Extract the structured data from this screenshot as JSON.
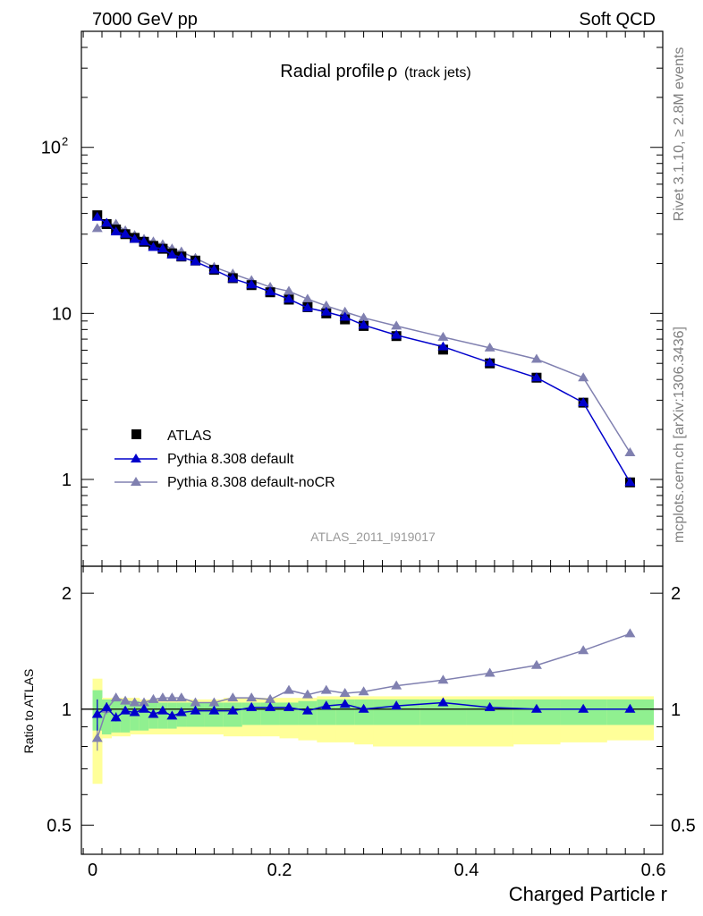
{
  "header": {
    "left": "7000 GeV pp",
    "right": "Soft QCD"
  },
  "side_labels": {
    "rivet": "Rivet 3.1.10, ≥ 2.8M events",
    "mcplots": "mcplots.cern.ch [arXiv:1306.3436]"
  },
  "colors": {
    "atlas": "#000000",
    "pythia_default": "#0000cc",
    "pythia_nocr": "#8080b0",
    "band_inner": "#90f090",
    "band_outer": "#ffff99"
  },
  "chart_data": [
    {
      "type": "scatter",
      "title": "Radial profile",
      "title_symbol": "ρ",
      "title_suffix": "(track jets)",
      "analysis_label": "ATLAS_2011_I919017",
      "yscale": "log",
      "xlim": [
        -0.012,
        0.61
      ],
      "ylim": [
        0.3,
        500
      ],
      "yticks": [
        {
          "value": 1,
          "label": "1",
          "exp": ""
        },
        {
          "value": 10,
          "label": "10",
          "exp": ""
        },
        {
          "value": 100,
          "label": "10",
          "exp": "2"
        }
      ],
      "legend": {
        "placement": "bottom-left",
        "entries": [
          {
            "label": "ATLAS",
            "series": 0
          },
          {
            "label": "Pythia 8.308 default",
            "series": 1
          },
          {
            "label": "Pythia 8.308 default-noCR",
            "series": 2
          }
        ]
      },
      "series": [
        {
          "name": "ATLAS",
          "marker": "square",
          "color": "#000000",
          "x": [
            0.005,
            0.015,
            0.025,
            0.035,
            0.045,
            0.055,
            0.065,
            0.075,
            0.085,
            0.095,
            0.11,
            0.13,
            0.15,
            0.17,
            0.19,
            0.21,
            0.23,
            0.25,
            0.27,
            0.29,
            0.325,
            0.375,
            0.425,
            0.475,
            0.525,
            0.575
          ],
          "values": [
            39.0,
            34.5,
            32.0,
            30.0,
            28.5,
            27.0,
            25.5,
            24.5,
            23.0,
            22.0,
            20.8,
            18.3,
            16.3,
            14.8,
            13.4,
            12.1,
            10.9,
            10.0,
            9.2,
            8.4,
            7.3,
            6.05,
            5.0,
            4.1,
            2.9,
            0.96
          ]
        },
        {
          "name": "Pythia 8.308 default",
          "marker": "triangle",
          "color": "#0000cc",
          "x": [
            0.005,
            0.015,
            0.025,
            0.035,
            0.045,
            0.055,
            0.065,
            0.075,
            0.085,
            0.095,
            0.11,
            0.13,
            0.15,
            0.17,
            0.19,
            0.21,
            0.23,
            0.25,
            0.27,
            0.29,
            0.325,
            0.375,
            0.425,
            0.475,
            0.525,
            0.575
          ],
          "values": [
            38.0,
            35.0,
            31.0,
            30.0,
            28.0,
            27.0,
            25.0,
            24.5,
            22.5,
            21.8,
            20.5,
            18.3,
            16.2,
            14.9,
            13.5,
            12.2,
            10.8,
            10.2,
            9.5,
            8.5,
            7.4,
            6.3,
            5.05,
            4.1,
            2.9,
            0.96
          ]
        },
        {
          "name": "Pythia 8.308 default-noCR",
          "marker": "triangle",
          "color": "#8080b0",
          "x": [
            0.005,
            0.015,
            0.025,
            0.035,
            0.045,
            0.055,
            0.065,
            0.075,
            0.085,
            0.095,
            0.11,
            0.13,
            0.15,
            0.17,
            0.19,
            0.21,
            0.23,
            0.25,
            0.27,
            0.29,
            0.325,
            0.375,
            0.425,
            0.475,
            0.525,
            0.575
          ],
          "values": [
            32.5,
            34.5,
            34.5,
            31.5,
            29.5,
            28.0,
            27.0,
            26.0,
            24.5,
            23.5,
            21.5,
            19.0,
            17.3,
            15.8,
            14.4,
            13.6,
            12.2,
            11.1,
            10.2,
            9.4,
            8.4,
            7.2,
            6.2,
            5.3,
            4.1,
            1.45
          ]
        }
      ]
    },
    {
      "type": "scatter",
      "ylabel": "Ratio to ATLAS",
      "xlabel": "Charged Particle r",
      "yscale": "log",
      "xlim": [
        -0.012,
        0.61
      ],
      "ylim": [
        0.42,
        2.35
      ],
      "yticks": [
        {
          "value": 0.5,
          "label": "0.5"
        },
        {
          "value": 1,
          "label": "1"
        },
        {
          "value": 2,
          "label": "2"
        }
      ],
      "xticks": [
        {
          "value": 0,
          "label": "0"
        },
        {
          "value": 0.2,
          "label": "0.2"
        },
        {
          "value": 0.4,
          "label": "0.4"
        },
        {
          "value": 0.6,
          "label": "0.6"
        }
      ],
      "reference_line": 1,
      "bin_edges": [
        0,
        0.01,
        0.02,
        0.03,
        0.04,
        0.05,
        0.06,
        0.07,
        0.08,
        0.09,
        0.1,
        0.12,
        0.14,
        0.16,
        0.18,
        0.2,
        0.22,
        0.24,
        0.26,
        0.28,
        0.3,
        0.35,
        0.4,
        0.45,
        0.5,
        0.55,
        0.6
      ],
      "band_inner_low": [
        0.88,
        0.86,
        0.87,
        0.87,
        0.88,
        0.88,
        0.89,
        0.89,
        0.89,
        0.9,
        0.9,
        0.9,
        0.9,
        0.91,
        0.91,
        0.91,
        0.91,
        0.91,
        0.91,
        0.91,
        0.91,
        0.91,
        0.91,
        0.91,
        0.91,
        0.91
      ],
      "band_inner_high": [
        1.12,
        1.06,
        1.05,
        1.05,
        1.05,
        1.04,
        1.04,
        1.04,
        1.04,
        1.04,
        1.04,
        1.04,
        1.04,
        1.04,
        1.04,
        1.04,
        1.05,
        1.06,
        1.06,
        1.06,
        1.06,
        1.06,
        1.06,
        1.06,
        1.06,
        1.06
      ],
      "band_outer_low": [
        0.64,
        0.84,
        0.85,
        0.85,
        0.86,
        0.86,
        0.86,
        0.86,
        0.86,
        0.86,
        0.86,
        0.86,
        0.85,
        0.85,
        0.85,
        0.84,
        0.83,
        0.82,
        0.82,
        0.81,
        0.8,
        0.8,
        0.8,
        0.81,
        0.82,
        0.83
      ],
      "band_outer_high": [
        1.2,
        1.07,
        1.07,
        1.07,
        1.07,
        1.06,
        1.06,
        1.06,
        1.06,
        1.06,
        1.06,
        1.06,
        1.07,
        1.07,
        1.07,
        1.07,
        1.07,
        1.08,
        1.08,
        1.08,
        1.08,
        1.08,
        1.08,
        1.08,
        1.08,
        1.08
      ],
      "series": [
        {
          "name": "Pythia 8.308 default",
          "marker": "triangle",
          "color": "#0000cc",
          "x": [
            0.005,
            0.015,
            0.025,
            0.035,
            0.045,
            0.055,
            0.065,
            0.075,
            0.085,
            0.095,
            0.11,
            0.13,
            0.15,
            0.17,
            0.19,
            0.21,
            0.23,
            0.25,
            0.27,
            0.29,
            0.325,
            0.375,
            0.425,
            0.475,
            0.525,
            0.575
          ],
          "values": [
            0.97,
            1.01,
            0.95,
            0.99,
            0.98,
            1.0,
            0.97,
            0.99,
            0.96,
            0.98,
            0.99,
            0.99,
            0.99,
            1.01,
            1.01,
            1.01,
            0.99,
            1.02,
            1.03,
            1.0,
            1.02,
            1.04,
            1.01,
            1.0,
            1.0,
            1.0
          ],
          "err_low": [
            0.88,
            0.98,
            0.93,
            0.97,
            0.97,
            0.99,
            0.96,
            0.98,
            0.95,
            0.97,
            0.98,
            0.98,
            0.98,
            1.0,
            1.0,
            1.0,
            0.98,
            1.01,
            1.02,
            0.99,
            1.01,
            1.03,
            1.0,
            0.99,
            0.99,
            0.99
          ],
          "err_high": [
            1.06,
            1.04,
            0.98,
            1.01,
            1.0,
            1.01,
            0.99,
            1.0,
            0.97,
            0.99,
            1.0,
            1.0,
            1.0,
            1.02,
            1.02,
            1.02,
            1.0,
            1.03,
            1.04,
            1.01,
            1.03,
            1.05,
            1.02,
            1.01,
            1.01,
            1.01
          ]
        },
        {
          "name": "Pythia 8.308 default-noCR",
          "marker": "triangle",
          "color": "#8080b0",
          "x": [
            0.005,
            0.015,
            0.025,
            0.035,
            0.045,
            0.055,
            0.065,
            0.075,
            0.085,
            0.095,
            0.11,
            0.13,
            0.15,
            0.17,
            0.19,
            0.21,
            0.23,
            0.25,
            0.27,
            0.29,
            0.325,
            0.375,
            0.425,
            0.475,
            0.525,
            0.575
          ],
          "values": [
            0.84,
            1.0,
            1.07,
            1.05,
            1.04,
            1.04,
            1.06,
            1.07,
            1.07,
            1.07,
            1.04,
            1.04,
            1.07,
            1.07,
            1.06,
            1.12,
            1.09,
            1.12,
            1.1,
            1.11,
            1.15,
            1.19,
            1.24,
            1.3,
            1.42,
            1.57
          ],
          "err_low": [
            0.78,
            0.97,
            1.05,
            1.04,
            1.03,
            1.03,
            1.05,
            1.06,
            1.06,
            1.06,
            1.03,
            1.03,
            1.06,
            1.06,
            1.05,
            1.11,
            1.08,
            1.11,
            1.09,
            1.1,
            1.14,
            1.18,
            1.23,
            1.29,
            1.41,
            1.56
          ],
          "err_high": [
            0.91,
            1.04,
            1.1,
            1.07,
            1.05,
            1.05,
            1.07,
            1.08,
            1.08,
            1.08,
            1.05,
            1.05,
            1.08,
            1.08,
            1.07,
            1.13,
            1.1,
            1.13,
            1.11,
            1.12,
            1.16,
            1.2,
            1.25,
            1.31,
            1.43,
            1.58
          ]
        }
      ]
    }
  ]
}
